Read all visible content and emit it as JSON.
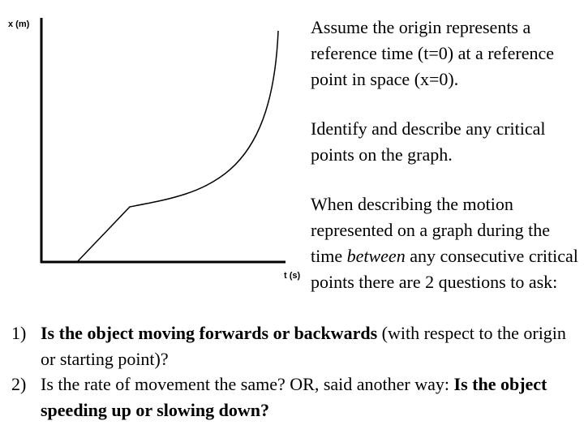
{
  "graph": {
    "y_axis_label": "x (m)",
    "x_axis_label": "t (s)"
  },
  "paragraphs": [
    [
      "Assume the origin represents a reference time (t=0) at a reference point in space (x=0)."
    ],
    [
      "Identify and describe any critical points on the graph."
    ],
    [
      "When describing the motion represented on a graph during the time ",
      "between",
      " any consecutive critical points there are 2 questions to ask:"
    ]
  ],
  "questions": [
    {
      "number": "1)",
      "text": [
        "Is the object moving forwards or backwards",
        " (with respect to the origin or starting point)?"
      ]
    },
    {
      "number": "2)",
      "text": [
        "Is the rate of movement the same? OR, said another way: ",
        "Is the object speeding up or slowing down?"
      ]
    }
  ]
}
